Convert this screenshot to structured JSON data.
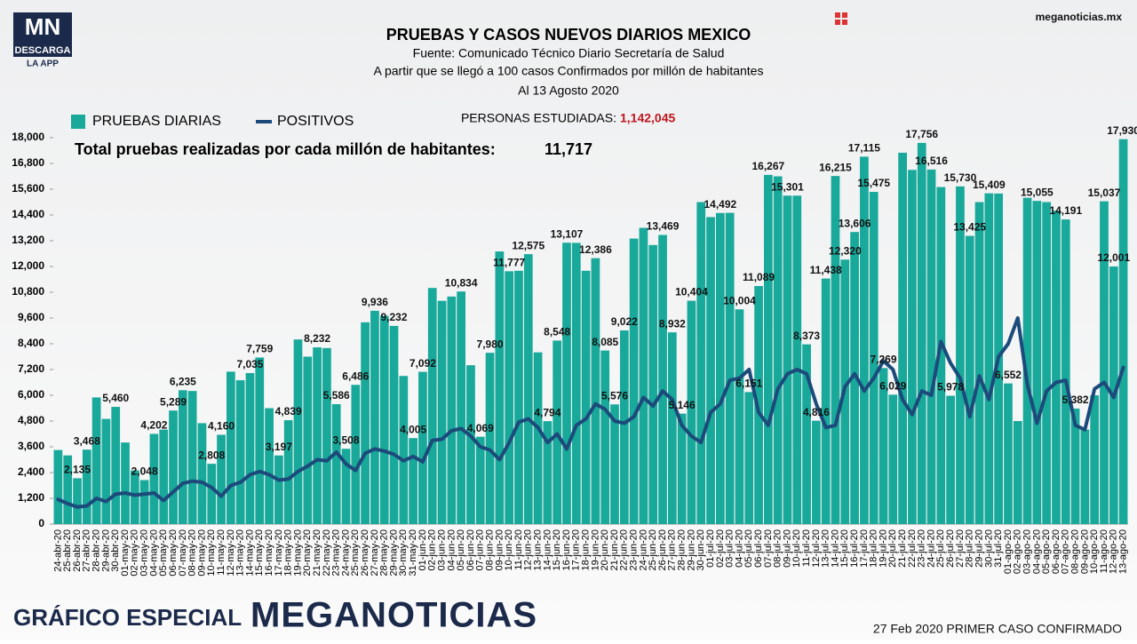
{
  "header": {
    "logo": "MN",
    "logo_sub": "DESCARGA",
    "logo_sub2": "LA APP",
    "site": "meganoticias.mx"
  },
  "footer": {
    "left": "GRÁFICO ESPECIAL",
    "brand": "MEGANOTICIAS",
    "right": "27 Feb 2020 PRIMER CASO CONFIRMADO"
  },
  "chart_data": {
    "type": "bar",
    "title": "PRUEBAS Y CASOS NUEVOS DIARIOS MEXICO",
    "subtitle": [
      "Fuente: Comunicado Técnico Diario Secretaría de Salud",
      "A partir que se llegó a 100 casos Confirmados por millón de habitantes",
      "Al 13 Agosto 2020"
    ],
    "annotations": [
      {
        "label": "PERSONAS ESTUDIADAS:",
        "value": "1,142,045"
      },
      {
        "label": "Total pruebas realizadas por cada millón de habitantes:",
        "value": "11,717"
      }
    ],
    "ylim": [
      0,
      18000
    ],
    "yticks": [
      0,
      {
        "value": 1200,
        "label": "1,200"
      },
      {
        "value": 2400,
        "label": "2,400"
      },
      {
        "value": 3600,
        "label": "3,600"
      },
      {
        "value": 4800,
        "label": "4,800"
      },
      {
        "value": 6000,
        "label": "6,000"
      },
      {
        "value": 7200,
        "label": "7,200"
      },
      {
        "value": 8400,
        "label": "8,400"
      },
      {
        "value": 9600,
        "label": "9,600"
      },
      {
        "value": 10800,
        "label": "10,800"
      },
      {
        "value": 12000,
        "label": "12,000"
      },
      {
        "value": 13200,
        "label": "13,200"
      },
      {
        "value": 14400,
        "label": "14,400"
      },
      {
        "value": 15600,
        "label": "15,600"
      },
      {
        "value": 16800,
        "label": "16,800"
      },
      {
        "value": 18000,
        "label": "18,000"
      }
    ],
    "grid": false,
    "categories": [
      "24-abr-20",
      "25-abr-20",
      "26-abr-20",
      "27-abr-20",
      "28-abr-20",
      "29-abr-20",
      "30-abr-20",
      "01-may-20",
      "02-may-20",
      "03-may-20",
      "04-may-20",
      "05-may-20",
      "06-may-20",
      "07-may-20",
      "08-may-20",
      "09-may-20",
      "10-may-20",
      "11-may-20",
      "12-may-20",
      "13-may-20",
      "14-may-20",
      "15-may-20",
      "16-may-20",
      "17-may-20",
      "18-may-20",
      "19-may-20",
      "20-may-20",
      "21-may-20",
      "22-may-20",
      "23-may-20",
      "24-may-20",
      "25-may-20",
      "26-may-20",
      "27-may-20",
      "28-may-20",
      "29-may-20",
      "30-may-20",
      "31-may-20",
      "01-jun-20",
      "02-jun-20",
      "03-jun-20",
      "04-jun-20",
      "05-jun-20",
      "06-jun-20",
      "07-jun-20",
      "08-jun-20",
      "09-jun-20",
      "10-jun-20",
      "11-jun-20",
      "12-jun-20",
      "13-jun-20",
      "14-jun-20",
      "15-jun-20",
      "16-jun-20",
      "17-jun-20",
      "18-jun-20",
      "19-jun-20",
      "20-jun-20",
      "21-jun-20",
      "22-jun-20",
      "23-jun-20",
      "24-jun-20",
      "25-jun-20",
      "26-jun-20",
      "27-jun-20",
      "28-jun-20",
      "29-jun-20",
      "30-jun-20",
      "01-jul-20",
      "02-jul-20",
      "03-jul-20",
      "04-jul-20",
      "05-jul-20",
      "06-jul-20",
      "07-jul-20",
      "08-jul-20",
      "09-jul-20",
      "10-jul-20",
      "11-jul-20",
      "12-jul-20",
      "13-jul-20",
      "14-jul-20",
      "15-jul-20",
      "16-jul-20",
      "17-jul-20",
      "18-jul-20",
      "19-jul-20",
      "20-jul-20",
      "21-jul-20",
      "22-jul-20",
      "23-jul-20",
      "24-jul-20",
      "25-jul-20",
      "26-jul-20",
      "27-jul-20",
      "28-jul-20",
      "29-jul-20",
      "30-jul-20",
      "31-jul-20",
      "01-ago-20",
      "02-ago-20",
      "03-ago-20",
      "04-ago-20",
      "05-ago-20",
      "06-ago-20",
      "07-ago-20",
      "08-ago-20",
      "09-ago-20",
      "10-ago-20",
      "11-ago-20",
      "12-ago-20",
      "13-ago-20"
    ],
    "series": [
      {
        "name": "PRUEBAS DIARIAS",
        "color": "#18a99b",
        "type": "bar",
        "values": [
          3450,
          3200,
          2135,
          3468,
          5900,
          4900,
          5460,
          3800,
          2500,
          2048,
          4202,
          4400,
          5289,
          6235,
          6200,
          4700,
          2808,
          4160,
          7100,
          6700,
          7035,
          7759,
          5400,
          3197,
          4839,
          8600,
          7800,
          8232,
          8200,
          5586,
          3508,
          6486,
          9400,
          9936,
          9700,
          9232,
          6900,
          4005,
          7092,
          11000,
          10400,
          10600,
          10834,
          7400,
          4069,
          7980,
          12700,
          11777,
          11800,
          12575,
          8000,
          4794,
          8548,
          13107,
          13100,
          11800,
          12386,
          8085,
          5576,
          9022,
          13300,
          13800,
          13000,
          13469,
          8932,
          5146,
          10404,
          15000,
          14300,
          14492,
          14500,
          10004,
          6151,
          11089,
          16267,
          16200,
          15301,
          15300,
          8373,
          4816,
          11438,
          16215,
          12320,
          13606,
          17115,
          15475,
          7269,
          6029,
          17300,
          16500,
          17756,
          16516,
          15700,
          5978,
          15730,
          13425,
          15000,
          15409,
          15400,
          6552,
          4800,
          15200,
          15055,
          15000,
          14600,
          14191,
          5382,
          4400,
          6000,
          15037,
          12001,
          17930
        ],
        "value_labels": [
          null,
          null,
          "2,135",
          "3,468",
          null,
          null,
          "5,460",
          null,
          null,
          "2,048",
          "4,202",
          null,
          "5,289",
          "6,235",
          null,
          null,
          "2,808",
          "4,160",
          null,
          null,
          "7,035",
          "7,759",
          null,
          "3,197",
          "4,839",
          null,
          null,
          "8,232",
          null,
          "5,586",
          "3,508",
          "6,486",
          null,
          "9,936",
          null,
          "9,232",
          null,
          "4,005",
          "7,092",
          null,
          null,
          null,
          "10,834",
          null,
          "4,069",
          "7,980",
          null,
          "11,777",
          null,
          "12,575",
          null,
          "4,794",
          "8,548",
          "13,107",
          null,
          null,
          "12,386",
          "8,085",
          "5,576",
          "9,022",
          null,
          null,
          null,
          "13,469",
          "8,932",
          "5,146",
          "10,404",
          null,
          null,
          "14,492",
          null,
          "10,004",
          "6,151",
          "11,089",
          "16,267",
          null,
          "15,301",
          null,
          "8,373",
          "4,816",
          "11,438",
          "16,215",
          "12,320",
          "13,606",
          "17,115",
          "15,475",
          "7,269",
          "6,029",
          null,
          null,
          "17,756",
          "16,516",
          null,
          "5,978",
          "15,730",
          "13,425",
          null,
          "15,409",
          null,
          "6,552",
          null,
          null,
          "15,055",
          null,
          null,
          "14,191",
          "5,382",
          null,
          null,
          "15,037",
          "12,001",
          "17,930"
        ]
      },
      {
        "name": "POSITIVOS",
        "color": "#1c4a7a",
        "type": "line",
        "values": [
          1150,
          950,
          800,
          850,
          1200,
          1050,
          1400,
          1450,
          1350,
          1400,
          1450,
          1100,
          1500,
          1900,
          2000,
          1950,
          1700,
          1300,
          1800,
          1950,
          2300,
          2450,
          2300,
          2050,
          2100,
          2450,
          2700,
          3000,
          2950,
          3350,
          2800,
          2500,
          3300,
          3500,
          3400,
          3250,
          2950,
          3150,
          2900,
          3900,
          3950,
          4350,
          4450,
          4100,
          3600,
          3450,
          3000,
          3800,
          4750,
          4900,
          4500,
          3800,
          4200,
          3500,
          4600,
          4900,
          5600,
          5350,
          4800,
          4700,
          5000,
          5900,
          5500,
          6200,
          5800,
          4600,
          4100,
          3800,
          5200,
          5600,
          6700,
          6800,
          7200,
          5200,
          4600,
          6300,
          7000,
          7200,
          7000,
          5600,
          4500,
          4600,
          6400,
          7000,
          6200,
          6800,
          7600,
          7200,
          5800,
          5100,
          6200,
          6000,
          8500,
          7500,
          6800,
          5000,
          6900,
          5800,
          7800,
          8400,
          9600,
          6500,
          4700,
          6200,
          6600,
          6700,
          4600,
          4400,
          6300,
          6600,
          5900,
          7300
        ]
      }
    ]
  }
}
